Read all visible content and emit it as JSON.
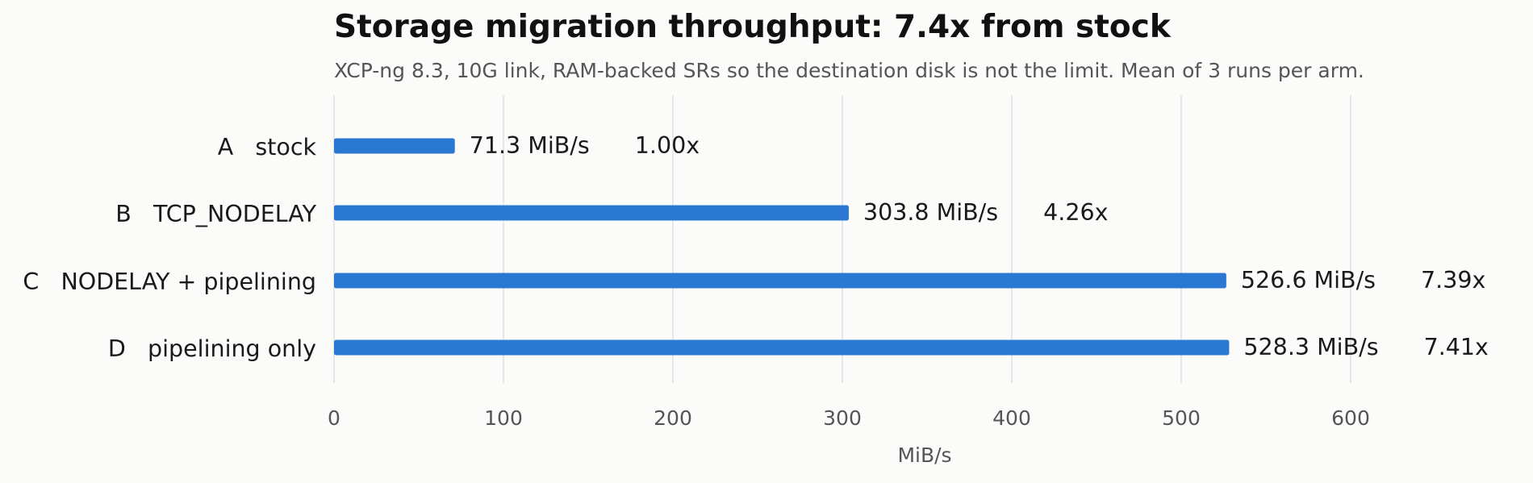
{
  "chart_data": {
    "type": "bar",
    "orientation": "horizontal",
    "title": "Storage migration throughput: 7.4x from stock",
    "subtitle": "XCP-ng 8.3, 10G link, RAM-backed SRs so the destination disk is not the limit. Mean of 3 runs per arm.",
    "xlabel": "MiB/s",
    "ylabel": "",
    "xlim": [
      0,
      680
    ],
    "xticks": [
      0,
      100,
      200,
      300,
      400,
      500,
      600
    ],
    "grid": "vertical",
    "bar_color": "#2b78d4",
    "categories": [
      "A   stock",
      "B   TCP_NODELAY",
      "C   NODELAY + pipelining",
      "D   pipelining only"
    ],
    "values": [
      71.3,
      303.8,
      526.6,
      528.3
    ],
    "value_labels": [
      "71.3 MiB/s",
      "303.8 MiB/s",
      "526.6 MiB/s",
      "528.3 MiB/s"
    ],
    "multiplier_labels": [
      "1.00x",
      "4.26x",
      "7.39x",
      "7.41x"
    ]
  }
}
